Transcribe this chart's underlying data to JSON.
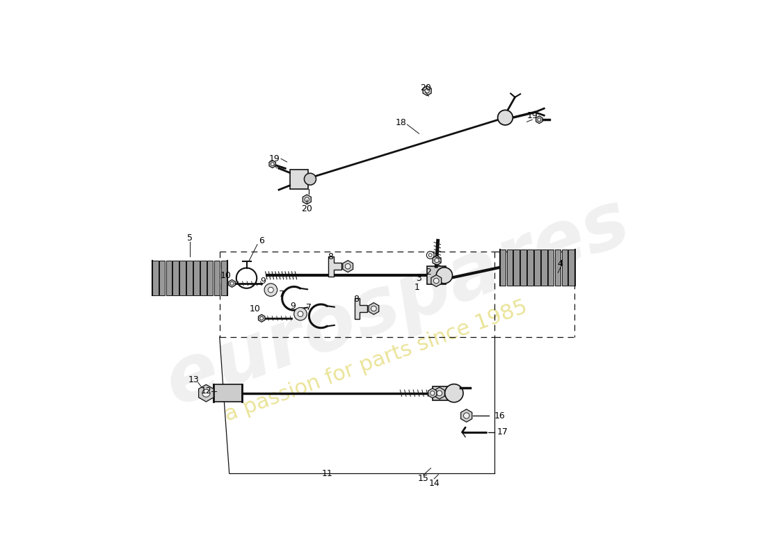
{
  "bg": "#ffffff",
  "lc": "#111111",
  "watermark1": "eurospares",
  "watermark2": "a passion for parts since 1985",
  "fig_w": 11.0,
  "fig_h": 8.0,
  "dpi": 100,
  "lfs": 9
}
